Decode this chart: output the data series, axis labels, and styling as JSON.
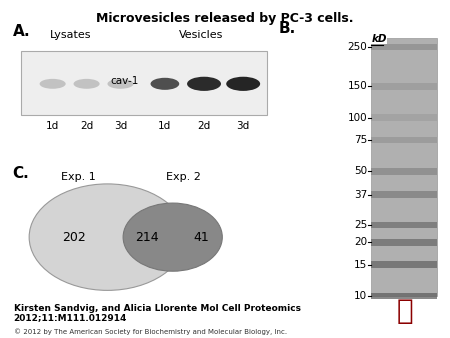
{
  "title": "Microvesicles released by PC-3 cells.",
  "title_fontsize": 9,
  "panel_a_label": "A.",
  "panel_b_label": "B.",
  "panel_c_label": "C.",
  "lysates_label": "Lysates",
  "vesicles_label": "Vesicles",
  "cav1_label": "cav-1",
  "lane_labels": [
    "1d",
    "2d",
    "3d",
    "1d",
    "2d",
    "3d"
  ],
  "mw_labels": [
    "250",
    "150",
    "100",
    "75",
    "50",
    "37",
    "25",
    "20",
    "15",
    "10"
  ],
  "mw_vals": [
    250,
    150,
    100,
    75,
    50,
    37,
    25,
    20,
    15,
    10
  ],
  "mw_unit": "kD",
  "exp1_label": "Exp. 1",
  "exp2_label": "Exp. 2",
  "venn_left_count": "202",
  "venn_center_count": "214",
  "venn_right_count": "41",
  "venn_left_color": "#d4d4d4",
  "venn_right_color": "#888888",
  "citation_line1": "Kirsten Sandvig, and Alicia Llorente Mol Cell Proteomics",
  "citation_line2": "2012;11:M111.012914",
  "copyright": "© 2012 by The American Society for Biochemistry and Molecular Biology, Inc.",
  "bg_color": "#ffffff",
  "label_fontsize": 11,
  "small_fontsize": 7.5,
  "citation_fontsize": 6.5,
  "mw_fontsize": 7.5
}
